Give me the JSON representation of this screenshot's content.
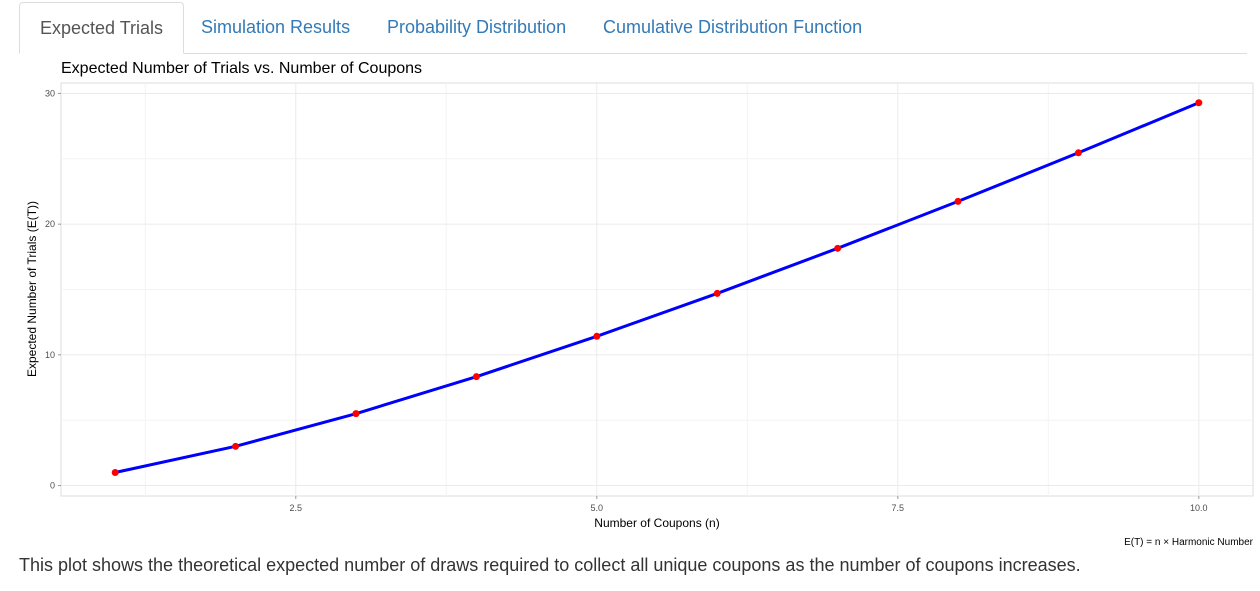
{
  "tabs": [
    {
      "label": "Expected Trials",
      "active": true
    },
    {
      "label": "Simulation Results",
      "active": false
    },
    {
      "label": "Probability Distribution",
      "active": false
    },
    {
      "label": "Cumulative Distribution Function",
      "active": false
    }
  ],
  "chart_data": {
    "type": "line",
    "title": "Expected Number of Trials vs. Number of Coupons",
    "xlabel": "Number of Coupons (n)",
    "ylabel": "Expected Number of Trials (E(T))",
    "caption": "E(T) = n × Harmonic Number",
    "x": [
      1,
      2,
      3,
      4,
      5,
      6,
      7,
      8,
      9,
      10
    ],
    "series": [
      {
        "values": [
          1.0,
          3.0,
          5.5,
          8.33,
          11.42,
          14.7,
          18.15,
          21.74,
          25.46,
          29.29
        ],
        "line_color": "#0000ff",
        "point_color": "#ff0000"
      }
    ],
    "xlim": [
      0.55,
      10.45
    ],
    "ylim": [
      -0.8,
      30.8
    ],
    "xticks": [
      2.5,
      5.0,
      7.5,
      10.0
    ],
    "xtick_labels": [
      "2.5",
      "5.0",
      "7.5",
      "10.0"
    ],
    "yticks": [
      0,
      10,
      20,
      30
    ],
    "ytick_labels": [
      "0",
      "10",
      "20",
      "30"
    ],
    "grid": true,
    "legend": "none"
  },
  "description": "This plot shows the theoretical expected number of draws required to collect all unique coupons as the number of coupons increases."
}
